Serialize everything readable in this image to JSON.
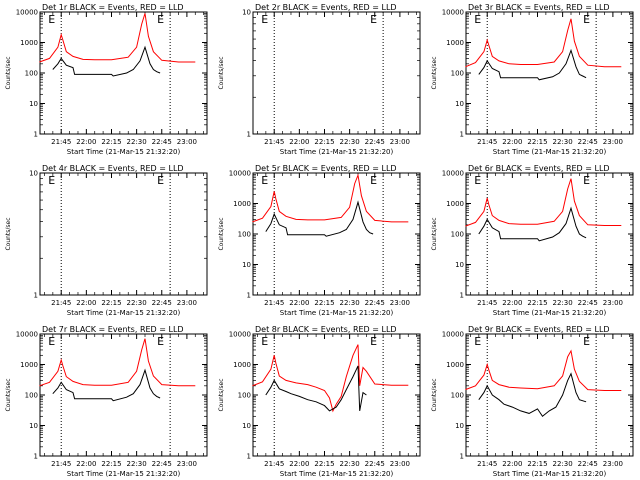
{
  "chart_data": [
    {
      "type": "line",
      "title": "Det 1r BLACK = Events, RED = LLD",
      "ylabel": "Counts/sec",
      "xlabel": "Start Time (21-Mar-15 21:32:20)",
      "ylim": [
        1,
        10000
      ],
      "yscale": "log",
      "ytick_labels": [
        "1",
        "10",
        "100",
        "1000",
        "10000"
      ],
      "xtick_labels": [
        "21:45",
        "22:00",
        "22:15",
        "22:30",
        "22:45",
        "23:00"
      ],
      "dotted_x": [
        "21:45",
        "22:50"
      ],
      "markers": [
        "E",
        "E"
      ],
      "series": [
        {
          "color": "#ff0000",
          "x": [
            "21:32",
            "21:38",
            "21:43",
            "21:45",
            "21:46",
            "21:48",
            "21:52",
            "21:58",
            "22:05",
            "22:15",
            "22:25",
            "22:30",
            "22:33",
            "22:35",
            "22:37",
            "22:40",
            "22:45",
            "22:55",
            "23:05"
          ],
          "y": [
            230,
            300,
            700,
            1800,
            1200,
            500,
            350,
            280,
            270,
            270,
            330,
            700,
            4000,
            9000,
            1600,
            500,
            260,
            230,
            230
          ]
        },
        {
          "color": "#000000",
          "x": [
            "21:40",
            "21:43",
            "21:45",
            "21:48",
            "21:52",
            "21:53",
            "22:15",
            "22:16",
            "22:24",
            "22:28",
            "22:32",
            "22:35",
            "22:38",
            "22:40",
            "22:42",
            "22:44"
          ],
          "y": [
            130,
            200,
            300,
            180,
            150,
            90,
            90,
            80,
            100,
            130,
            250,
            700,
            200,
            130,
            110,
            100
          ]
        }
      ]
    },
    {
      "type": "line",
      "title": "Det 2r BLACK = Events, RED = LLD",
      "ylabel": "Counts/sec",
      "xlabel": "Start Time (21-Mar-15 21:32:20)",
      "ylim": [
        1,
        10
      ],
      "yscale": "log",
      "ytick_labels": [
        "1",
        "10"
      ],
      "xtick_labels": [
        "21:45",
        "22:00",
        "22:15",
        "22:30",
        "22:45",
        "23:00"
      ],
      "dotted_x": [
        "21:45",
        "22:50"
      ],
      "markers": [
        "E",
        "E"
      ],
      "series": []
    },
    {
      "type": "line",
      "title": "Det 3r BLACK = Events, RED = LLD",
      "ylabel": "Counts/sec",
      "xlabel": "Start Time (21-Mar-15 21:32:20)",
      "ylim": [
        1,
        10000
      ],
      "yscale": "log",
      "ytick_labels": [
        "1",
        "10",
        "100",
        "1000",
        "10000"
      ],
      "xtick_labels": [
        "21:45",
        "22:00",
        "22:15",
        "22:30",
        "22:45",
        "23:00"
      ],
      "dotted_x": [
        "21:45",
        "22:50"
      ],
      "markers": [
        "E",
        "E"
      ],
      "series": [
        {
          "color": "#ff0000",
          "x": [
            "21:32",
            "21:38",
            "21:43",
            "21:45",
            "21:46",
            "21:48",
            "21:52",
            "21:58",
            "22:05",
            "22:15",
            "22:25",
            "22:30",
            "22:33",
            "22:35",
            "22:37",
            "22:40",
            "22:45",
            "22:55",
            "23:05"
          ],
          "y": [
            160,
            220,
            500,
            1200,
            800,
            350,
            250,
            200,
            190,
            190,
            230,
            500,
            2500,
            6000,
            1100,
            350,
            180,
            160,
            160
          ]
        },
        {
          "color": "#000000",
          "x": [
            "21:40",
            "21:43",
            "21:45",
            "21:48",
            "21:52",
            "21:53",
            "22:15",
            "22:16",
            "22:24",
            "22:28",
            "22:32",
            "22:35",
            "22:38",
            "22:40",
            "22:42",
            "22:44"
          ],
          "y": [
            90,
            150,
            250,
            140,
            110,
            70,
            70,
            60,
            75,
            100,
            200,
            550,
            160,
            90,
            80,
            70
          ]
        }
      ]
    },
    {
      "type": "line",
      "title": "Det 4r BLACK = Events, RED = LLD",
      "ylabel": "Counts/sec",
      "xlabel": "Start Time (21-Mar-15 21:32:20)",
      "ylim": [
        1,
        10
      ],
      "yscale": "log",
      "ytick_labels": [
        "1",
        "10"
      ],
      "xtick_labels": [
        "21:45",
        "22:00",
        "22:15",
        "22:30",
        "22:45",
        "23:00"
      ],
      "dotted_x": [
        "21:45",
        "22:50"
      ],
      "markers": [
        "E",
        "E"
      ],
      "series": []
    },
    {
      "type": "line",
      "title": "Det 5r BLACK = Events, RED = LLD",
      "ylabel": "Counts/sec",
      "xlabel": "Start Time (21-Mar-15 21:32:20)",
      "ylim": [
        1,
        10000
      ],
      "yscale": "log",
      "ytick_labels": [
        "1",
        "10",
        "100",
        "1000",
        "10000"
      ],
      "xtick_labels": [
        "21:45",
        "22:00",
        "22:15",
        "22:30",
        "22:45",
        "23:00"
      ],
      "dotted_x": [
        "21:45",
        "22:50"
      ],
      "markers": [
        "E",
        "E"
      ],
      "series": [
        {
          "color": "#ff0000",
          "x": [
            "21:32",
            "21:38",
            "21:43",
            "21:45",
            "21:46",
            "21:48",
            "21:52",
            "21:58",
            "22:05",
            "22:15",
            "22:25",
            "22:30",
            "22:33",
            "22:35",
            "22:37",
            "22:40",
            "22:45",
            "22:55",
            "23:05"
          ],
          "y": [
            250,
            330,
            800,
            2500,
            1400,
            550,
            380,
            300,
            290,
            290,
            350,
            750,
            4500,
            8500,
            1800,
            550,
            280,
            250,
            250
          ]
        },
        {
          "color": "#000000",
          "x": [
            "21:40",
            "21:43",
            "21:45",
            "21:48",
            "21:52",
            "21:53",
            "22:15",
            "22:16",
            "22:24",
            "22:28",
            "22:32",
            "22:35",
            "22:38",
            "22:40",
            "22:42",
            "22:44"
          ],
          "y": [
            120,
            220,
            450,
            200,
            160,
            95,
            95,
            85,
            110,
            140,
            300,
            1100,
            250,
            140,
            110,
            100
          ]
        }
      ]
    },
    {
      "type": "line",
      "title": "Det 6r BLACK = Events, RED = LLD",
      "ylabel": "Counts/sec",
      "xlabel": "Start Time (21-Mar-15 21:32:20)",
      "ylim": [
        1,
        10000
      ],
      "yscale": "log",
      "ytick_labels": [
        "1",
        "10",
        "100",
        "1000",
        "10000"
      ],
      "xtick_labels": [
        "21:45",
        "22:00",
        "22:15",
        "22:30",
        "22:45",
        "23:00"
      ],
      "dotted_x": [
        "21:45",
        "22:50"
      ],
      "markers": [
        "E",
        "E"
      ],
      "series": [
        {
          "color": "#ff0000",
          "x": [
            "21:32",
            "21:38",
            "21:43",
            "21:45",
            "21:46",
            "21:48",
            "21:52",
            "21:58",
            "22:05",
            "22:15",
            "22:25",
            "22:30",
            "22:33",
            "22:35",
            "22:37",
            "22:40",
            "22:45",
            "22:55",
            "23:05"
          ],
          "y": [
            180,
            240,
            550,
            1500,
            900,
            400,
            280,
            220,
            210,
            210,
            260,
            550,
            3000,
            6500,
            1200,
            400,
            200,
            190,
            190
          ]
        },
        {
          "color": "#000000",
          "x": [
            "21:40",
            "21:43",
            "21:45",
            "21:48",
            "21:52",
            "21:53",
            "22:15",
            "22:16",
            "22:24",
            "22:28",
            "22:32",
            "22:35",
            "22:38",
            "22:40",
            "22:42",
            "22:44"
          ],
          "y": [
            100,
            180,
            300,
            160,
            120,
            70,
            70,
            60,
            80,
            110,
            220,
            700,
            180,
            100,
            85,
            75
          ]
        }
      ]
    },
    {
      "type": "line",
      "title": "Det 7r BLACK = Events, RED = LLD",
      "ylabel": "Counts/sec",
      "xlabel": "Start Time (21-Mar-15 21:32:20)",
      "ylim": [
        1,
        10000
      ],
      "yscale": "log",
      "ytick_labels": [
        "1",
        "10",
        "100",
        "1000",
        "10000"
      ],
      "xtick_labels": [
        "21:45",
        "22:00",
        "22:15",
        "22:30",
        "22:45",
        "23:00"
      ],
      "dotted_x": [
        "21:45",
        "22:50"
      ],
      "markers": [
        "E",
        "E"
      ],
      "series": [
        {
          "color": "#ff0000",
          "x": [
            "21:32",
            "21:38",
            "21:43",
            "21:45",
            "21:46",
            "21:48",
            "21:52",
            "21:58",
            "22:05",
            "22:15",
            "22:25",
            "22:30",
            "22:33",
            "22:35",
            "22:37",
            "22:40",
            "22:45",
            "22:55",
            "23:05"
          ],
          "y": [
            200,
            260,
            600,
            1400,
            900,
            400,
            280,
            220,
            210,
            210,
            260,
            600,
            3000,
            7000,
            1300,
            420,
            220,
            200,
            200
          ]
        },
        {
          "color": "#000000",
          "x": [
            "21:40",
            "21:43",
            "21:45",
            "21:48",
            "21:52",
            "21:53",
            "22:15",
            "22:16",
            "22:24",
            "22:28",
            "22:32",
            "22:35",
            "22:38",
            "22:40",
            "22:42",
            "22:44"
          ],
          "y": [
            110,
            170,
            260,
            150,
            120,
            75,
            75,
            65,
            85,
            110,
            220,
            650,
            170,
            110,
            90,
            80
          ]
        }
      ]
    },
    {
      "type": "line",
      "title": "Det 8r BLACK = Events, RED = LLD",
      "ylabel": "Counts/sec",
      "xlabel": "Start Time (21-Mar-15 21:32:20)",
      "ylim": [
        1,
        10000
      ],
      "yscale": "log",
      "ytick_labels": [
        "1",
        "10",
        "100",
        "1000",
        "10000"
      ],
      "xtick_labels": [
        "21:45",
        "22:00",
        "22:15",
        "22:30",
        "22:45",
        "23:00"
      ],
      "dotted_x": [
        "21:45",
        "22:50"
      ],
      "markers": [
        "E",
        "E"
      ],
      "series": [
        {
          "color": "#ff0000",
          "x": [
            "21:32",
            "21:38",
            "21:43",
            "21:45",
            "21:46",
            "21:48",
            "21:52",
            "21:58",
            "22:05",
            "22:10",
            "22:15",
            "22:18",
            "22:20",
            "22:22",
            "22:25",
            "22:28",
            "22:32",
            "22:35",
            "22:36",
            "22:38",
            "22:40",
            "22:45",
            "22:55",
            "23:05"
          ],
          "y": [
            200,
            270,
            700,
            2000,
            1100,
            420,
            300,
            250,
            220,
            180,
            140,
            80,
            30,
            50,
            90,
            400,
            2000,
            4500,
            200,
            800,
            600,
            230,
            210,
            210
          ]
        },
        {
          "color": "#000000",
          "x": [
            "21:40",
            "21:43",
            "21:45",
            "21:48",
            "21:52",
            "21:55",
            "22:00",
            "22:05",
            "22:10",
            "22:15",
            "22:18",
            "22:20",
            "22:22",
            "22:25",
            "22:28",
            "22:32",
            "22:35",
            "22:36",
            "22:38",
            "22:40"
          ],
          "y": [
            100,
            180,
            300,
            160,
            130,
            110,
            90,
            70,
            60,
            45,
            30,
            35,
            40,
            70,
            150,
            400,
            900,
            30,
            120,
            100
          ]
        }
      ]
    },
    {
      "type": "line",
      "title": "Det 9r BLACK = Events, RED = LLD",
      "ylabel": "Counts/sec",
      "xlabel": "Start Time (21-Mar-15 21:32:20)",
      "ylim": [
        1,
        10000
      ],
      "yscale": "log",
      "ytick_labels": [
        "1",
        "10",
        "100",
        "1000",
        "10000"
      ],
      "xtick_labels": [
        "21:45",
        "22:00",
        "22:15",
        "22:30",
        "22:45",
        "23:00"
      ],
      "dotted_x": [
        "21:45",
        "22:50"
      ],
      "markers": [
        "E",
        "E"
      ],
      "series": [
        {
          "color": "#ff0000",
          "x": [
            "21:32",
            "21:38",
            "21:43",
            "21:45",
            "21:46",
            "21:48",
            "21:52",
            "21:58",
            "22:05",
            "22:15",
            "22:25",
            "22:30",
            "22:33",
            "22:35",
            "22:37",
            "22:40",
            "22:45",
            "22:55",
            "23:05"
          ],
          "y": [
            150,
            200,
            450,
            1000,
            650,
            300,
            220,
            180,
            170,
            160,
            200,
            420,
            1800,
            2800,
            700,
            280,
            150,
            140,
            140
          ]
        },
        {
          "color": "#000000",
          "x": [
            "21:40",
            "21:43",
            "21:45",
            "21:48",
            "21:52",
            "21:55",
            "22:00",
            "22:05",
            "22:10",
            "22:15",
            "22:18",
            "22:22",
            "22:26",
            "22:30",
            "22:33",
            "22:35",
            "22:38",
            "22:40",
            "22:44"
          ],
          "y": [
            70,
            120,
            200,
            100,
            70,
            50,
            40,
            30,
            25,
            35,
            20,
            30,
            40,
            100,
            300,
            500,
            120,
            70,
            60
          ]
        }
      ]
    }
  ]
}
